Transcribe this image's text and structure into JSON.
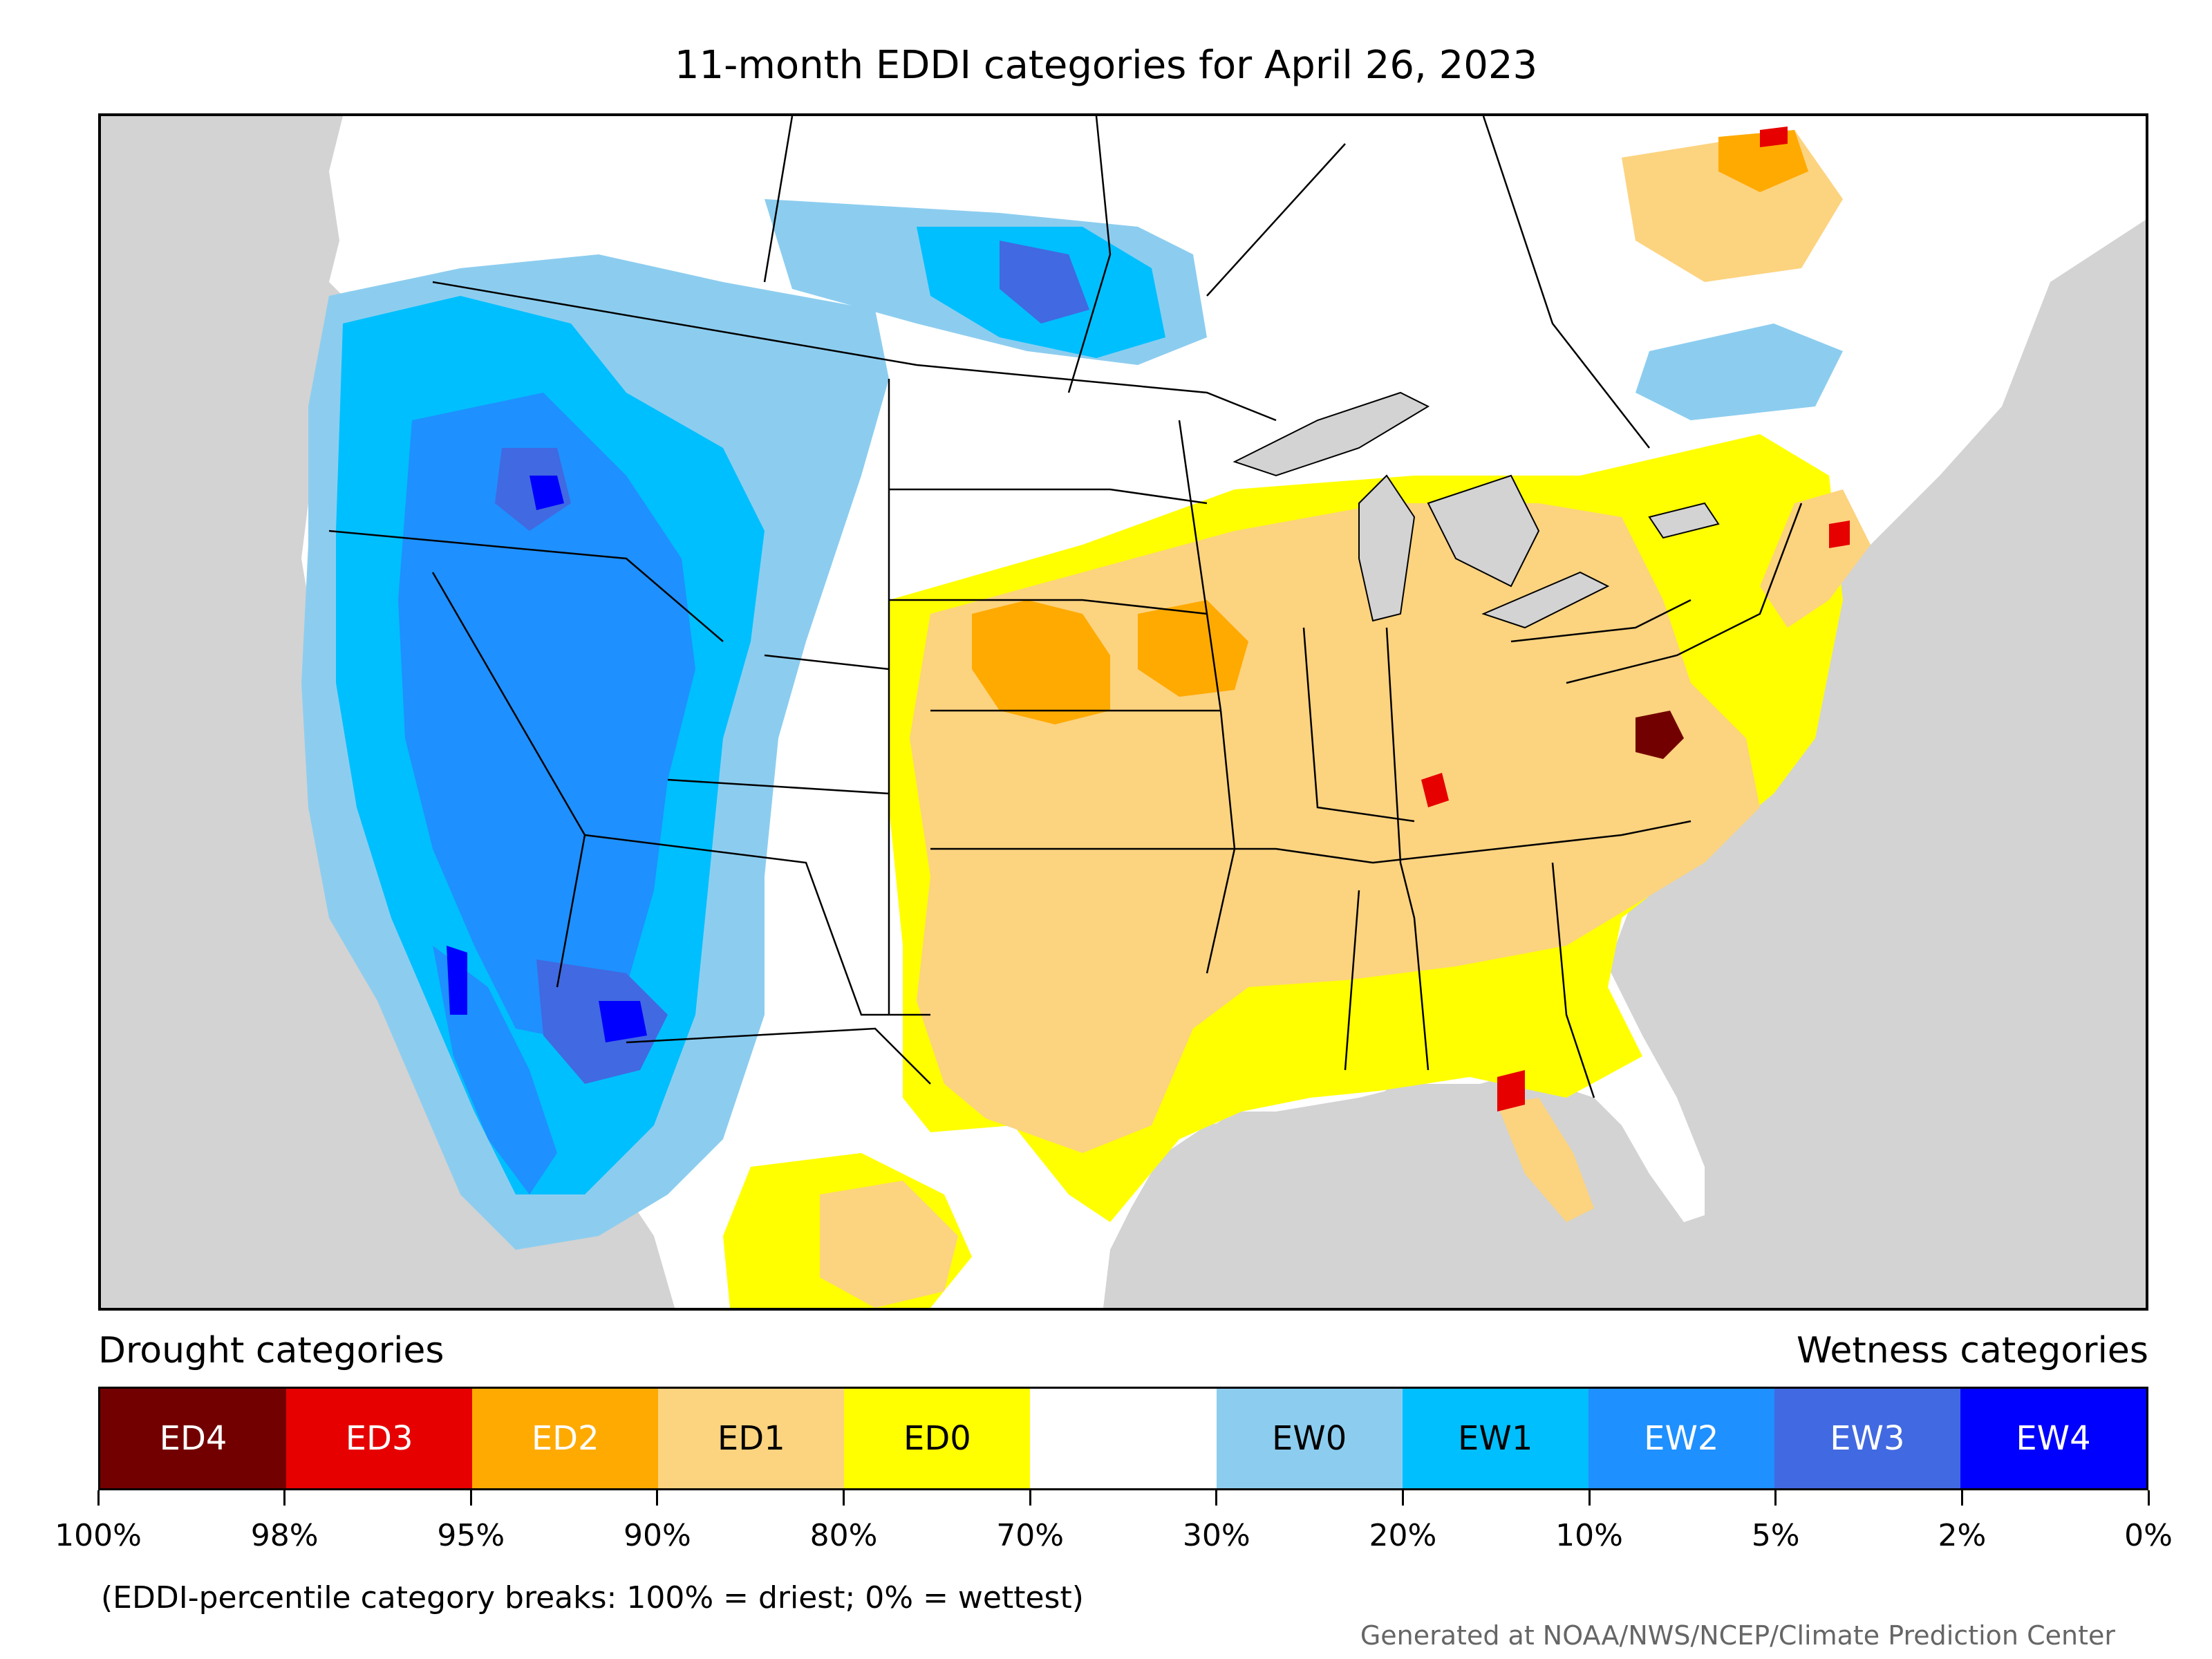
{
  "title": "11-month EDDI categories for April 26, 2023",
  "legend": {
    "drought_heading": "Drought categories",
    "wetness_heading": "Wetness categories",
    "categories": [
      {
        "label": "ED4",
        "color": "#730000",
        "text_color": "#ffffff"
      },
      {
        "label": "ED3",
        "color": "#e60000",
        "text_color": "#ffffff"
      },
      {
        "label": "ED2",
        "color": "#ffaa00",
        "text_color": "#ffffff"
      },
      {
        "label": "ED1",
        "color": "#fcd37f",
        "text_color": "#000000"
      },
      {
        "label": "ED0",
        "color": "#ffff00",
        "text_color": "#000000"
      },
      {
        "label": "",
        "color": "#ffffff",
        "text_color": "#000000"
      },
      {
        "label": "EW0",
        "color": "#8ccdef",
        "text_color": "#000000"
      },
      {
        "label": "EW1",
        "color": "#00bfff",
        "text_color": "#000000"
      },
      {
        "label": "EW2",
        "color": "#1e90ff",
        "text_color": "#ffffff"
      },
      {
        "label": "EW3",
        "color": "#4169e1",
        "text_color": "#ffffff"
      },
      {
        "label": "EW4",
        "color": "#0000ff",
        "text_color": "#ffffff"
      }
    ],
    "tick_labels": [
      "100%",
      "98%",
      "95%",
      "90%",
      "80%",
      "70%",
      "30%",
      "20%",
      "10%",
      "5%",
      "2%",
      "0%"
    ],
    "note": "(EDDI-percentile category breaks: 100% = driest; 0% = wettest)"
  },
  "credit": "Generated at NOAA/NWS/NCEP/Climate Prediction Center",
  "map": {
    "ocean_color": "#d3d3d3",
    "land_color": "#ffffff",
    "border_color": "#000000"
  }
}
